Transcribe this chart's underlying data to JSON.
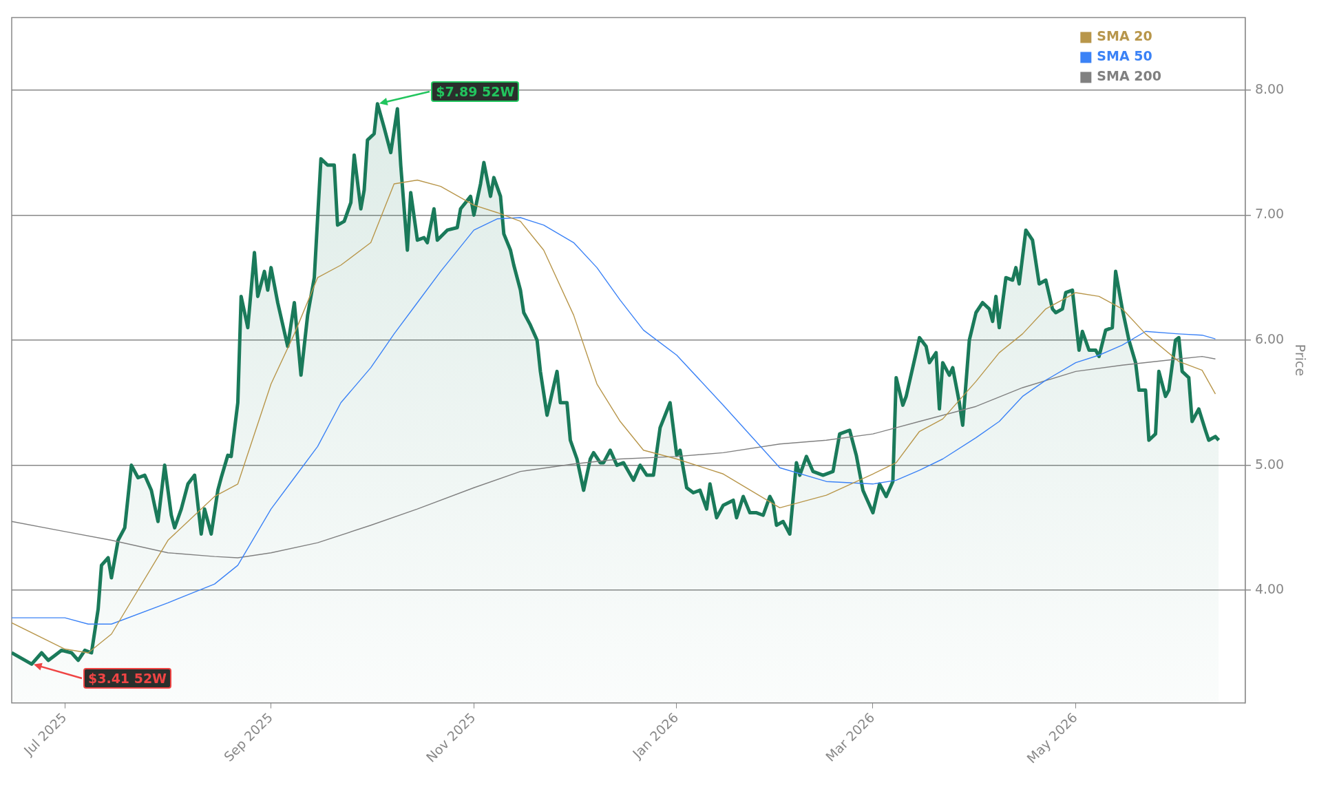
{
  "chart_data": {
    "type": "line",
    "ylabel": "Price",
    "ylim": [
      3.1,
      8.58
    ],
    "yticks": [
      {
        "value": 4,
        "label": "4.00"
      },
      {
        "value": 5,
        "label": "5.00"
      },
      {
        "value": 6,
        "label": "6.00"
      },
      {
        "value": 7,
        "label": "7.00"
      },
      {
        "value": 8,
        "label": "8.00"
      }
    ],
    "xlim": [
      "2025-06-15",
      "2026-06-21"
    ],
    "xticks": [
      {
        "value": "2025-07-01",
        "label": "Jul 2025"
      },
      {
        "value": "2025-09-01",
        "label": "Sep 2025"
      },
      {
        "value": "2025-11-01",
        "label": "Nov 2025"
      },
      {
        "value": "2026-01-01",
        "label": "Jan 2026"
      },
      {
        "value": "2026-03-01",
        "label": "Mar 2026"
      },
      {
        "value": "2026-05-01",
        "label": "May 2026"
      }
    ],
    "grid": "y",
    "legend": "top right",
    "marker": "none",
    "line_style": "solid",
    "annotations": [
      "$7.89 52W",
      "$3.41 52W"
    ],
    "series": [
      {
        "type": "area",
        "color": "#1a7a5a",
        "x": [
          "2025-06-15",
          "2025-06-19",
          "2025-06-21",
          "2025-06-24",
          "2025-06-26",
          "2025-06-28",
          "2025-06-30",
          "2025-07-03",
          "2025-07-05",
          "2025-07-07",
          "2025-07-09",
          "2025-07-11",
          "2025-07-12",
          "2025-07-14",
          "2025-07-15",
          "2025-07-17",
          "2025-07-19",
          "2025-07-21",
          "2025-07-23",
          "2025-07-25",
          "2025-07-27",
          "2025-07-29",
          "2025-07-31",
          "2025-08-02",
          "2025-08-03",
          "2025-08-05",
          "2025-08-07",
          "2025-08-09",
          "2025-08-11",
          "2025-08-12",
          "2025-08-14",
          "2025-08-16",
          "2025-08-17",
          "2025-08-19",
          "2025-08-20",
          "2025-08-22",
          "2025-08-23",
          "2025-08-25",
          "2025-08-27",
          "2025-08-28",
          "2025-08-30",
          "2025-08-31",
          "2025-09-01",
          "2025-09-03",
          "2025-09-06",
          "2025-09-08",
          "2025-09-10",
          "2025-09-12",
          "2025-09-14",
          "2025-09-16",
          "2025-09-18",
          "2025-09-20",
          "2025-09-21",
          "2025-09-23",
          "2025-09-25",
          "2025-09-26",
          "2025-09-28",
          "2025-09-29",
          "2025-09-30",
          "2025-10-02",
          "2025-10-03",
          "2025-10-05",
          "2025-10-07",
          "2025-10-09",
          "2025-10-10",
          "2025-10-12",
          "2025-10-13",
          "2025-10-15",
          "2025-10-17",
          "2025-10-18",
          "2025-10-20",
          "2025-10-21",
          "2025-10-24",
          "2025-10-27",
          "2025-10-28",
          "2025-10-31",
          "2025-11-01",
          "2025-11-03",
          "2025-11-04",
          "2025-11-06",
          "2025-11-07",
          "2025-11-09",
          "2025-11-10",
          "2025-11-12",
          "2025-11-13",
          "2025-11-15",
          "2025-11-16",
          "2025-11-18",
          "2025-11-20",
          "2025-11-21",
          "2025-11-23",
          "2025-11-26",
          "2025-11-27",
          "2025-11-29",
          "2025-11-30",
          "2025-12-02",
          "2025-12-04",
          "2025-12-06",
          "2025-12-07",
          "2025-12-09",
          "2025-12-10",
          "2025-12-12",
          "2025-12-14",
          "2025-12-16",
          "2025-12-19",
          "2025-12-21",
          "2025-12-23",
          "2025-12-25",
          "2025-12-27",
          "2025-12-30",
          "2026-01-01",
          "2026-01-02",
          "2026-01-04",
          "2026-01-06",
          "2026-01-08",
          "2026-01-10",
          "2026-01-11",
          "2026-01-13",
          "2026-01-15",
          "2026-01-18",
          "2026-01-19",
          "2026-01-21",
          "2026-01-23",
          "2026-01-25",
          "2026-01-27",
          "2026-01-29",
          "2026-01-30",
          "2026-01-31",
          "2026-02-02",
          "2026-02-04",
          "2026-02-06",
          "2026-02-07",
          "2026-02-09",
          "2026-02-11",
          "2026-02-14",
          "2026-02-17",
          "2026-02-19",
          "2026-02-22",
          "2026-02-24",
          "2026-02-26",
          "2026-03-01",
          "2026-03-03",
          "2026-03-05",
          "2026-03-07",
          "2026-03-08",
          "2026-03-10",
          "2026-03-11",
          "2026-03-14",
          "2026-03-15",
          "2026-03-17",
          "2026-03-18",
          "2026-03-20",
          "2026-03-21",
          "2026-03-22",
          "2026-03-24",
          "2026-03-25",
          "2026-03-27",
          "2026-03-28",
          "2026-03-30",
          "2026-04-01",
          "2026-04-03",
          "2026-04-05",
          "2026-04-06",
          "2026-04-07",
          "2026-04-08",
          "2026-04-10",
          "2026-04-12",
          "2026-04-13",
          "2026-04-14",
          "2026-04-16",
          "2026-04-18",
          "2026-04-20",
          "2026-04-22",
          "2026-04-24",
          "2026-04-25",
          "2026-04-27",
          "2026-04-28",
          "2026-04-30",
          "2026-05-02",
          "2026-05-03",
          "2026-05-05",
          "2026-05-07",
          "2026-05-08",
          "2026-05-10",
          "2026-05-12",
          "2026-05-13",
          "2026-05-15",
          "2026-05-17",
          "2026-05-19",
          "2026-05-20",
          "2026-05-22",
          "2026-05-23",
          "2026-05-25",
          "2026-05-26",
          "2026-05-28",
          "2026-05-29",
          "2026-05-31",
          "2026-06-01",
          "2026-06-02",
          "2026-06-04",
          "2026-06-05",
          "2026-06-07",
          "2026-06-09",
          "2026-06-10",
          "2026-06-12",
          "2026-06-13"
        ],
        "values": [
          3.5,
          3.44,
          3.41,
          3.5,
          3.44,
          3.48,
          3.52,
          3.5,
          3.44,
          3.52,
          3.5,
          3.85,
          4.2,
          4.26,
          4.1,
          4.4,
          4.5,
          5.0,
          4.9,
          4.92,
          4.8,
          4.55,
          5.0,
          4.6,
          4.5,
          4.65,
          4.85,
          4.92,
          4.45,
          4.65,
          4.45,
          4.8,
          4.9,
          5.08,
          5.07,
          5.5,
          6.35,
          6.1,
          6.7,
          6.35,
          6.55,
          6.4,
          6.58,
          6.3,
          5.95,
          6.3,
          5.72,
          6.2,
          6.5,
          7.45,
          7.4,
          7.4,
          6.92,
          6.95,
          7.1,
          7.48,
          7.05,
          7.2,
          7.6,
          7.65,
          7.89,
          7.7,
          7.5,
          7.85,
          7.4,
          6.72,
          7.18,
          6.8,
          6.82,
          6.78,
          7.05,
          6.8,
          6.88,
          6.9,
          7.05,
          7.15,
          7.0,
          7.25,
          7.42,
          7.15,
          7.3,
          7.15,
          6.85,
          6.72,
          6.6,
          6.4,
          6.22,
          6.12,
          6.0,
          5.75,
          5.4,
          5.75,
          5.5,
          5.5,
          5.2,
          5.05,
          4.8,
          5.05,
          5.1,
          5.02,
          5.02,
          5.12,
          5.0,
          5.02,
          4.88,
          5.0,
          4.92,
          4.92,
          5.3,
          5.5,
          5.08,
          5.12,
          4.82,
          4.78,
          4.8,
          4.65,
          4.85,
          4.58,
          4.68,
          4.72,
          4.58,
          4.75,
          4.62,
          4.62,
          4.6,
          4.75,
          4.7,
          4.52,
          4.55,
          4.45,
          5.02,
          4.92,
          5.07,
          4.95,
          4.92,
          4.95,
          5.25,
          5.28,
          5.08,
          4.8,
          4.62,
          4.85,
          4.75,
          4.87,
          5.7,
          5.48,
          5.55,
          5.9,
          6.02,
          5.95,
          5.82,
          5.9,
          5.45,
          5.82,
          5.72,
          5.78,
          5.5,
          5.32,
          6.0,
          6.22,
          6.3,
          6.25,
          6.15,
          6.35,
          6.1,
          6.5,
          6.48,
          6.58,
          6.45,
          6.88,
          6.8,
          6.45,
          6.48,
          6.25,
          6.22,
          6.25,
          6.38,
          6.4,
          5.92,
          6.07,
          5.92,
          5.92,
          5.87,
          6.08,
          6.1,
          6.55,
          6.25,
          6.0,
          5.82,
          5.6,
          5.6,
          5.2,
          5.25,
          5.75,
          5.55,
          5.6,
          6.0,
          6.02,
          5.75,
          5.7,
          5.35,
          5.45,
          5.28,
          5.2,
          5.23,
          5.2
        ]
      },
      {
        "type": "line",
        "name": "SMA 20",
        "color": "#b8964a",
        "x": [
          "2025-06-15",
          "2025-07-01",
          "2025-07-08",
          "2025-07-15",
          "2025-08-01",
          "2025-08-15",
          "2025-08-22",
          "2025-09-01",
          "2025-09-08",
          "2025-09-15",
          "2025-09-22",
          "2025-10-01",
          "2025-10-08",
          "2025-10-15",
          "2025-10-22",
          "2025-11-01",
          "2025-11-08",
          "2025-11-15",
          "2025-11-22",
          "2025-12-01",
          "2025-12-08",
          "2025-12-15",
          "2025-12-22",
          "2026-01-01",
          "2026-01-15",
          "2026-02-01",
          "2026-02-15",
          "2026-03-01",
          "2026-03-08",
          "2026-03-15",
          "2026-03-22",
          "2026-04-01",
          "2026-04-08",
          "2026-04-15",
          "2026-04-22",
          "2026-05-01",
          "2026-05-08",
          "2026-05-15",
          "2026-05-22",
          "2026-06-01",
          "2026-06-08",
          "2026-06-12"
        ],
        "values": [
          3.74,
          3.53,
          3.5,
          3.65,
          4.4,
          4.75,
          4.85,
          5.65,
          6.05,
          6.5,
          6.6,
          6.78,
          7.25,
          7.28,
          7.23,
          7.08,
          7.02,
          6.95,
          6.72,
          6.2,
          5.65,
          5.35,
          5.12,
          5.05,
          4.93,
          4.66,
          4.76,
          4.93,
          5.02,
          5.27,
          5.37,
          5.67,
          5.9,
          6.05,
          6.25,
          6.38,
          6.35,
          6.25,
          6.05,
          5.83,
          5.76,
          5.57
        ]
      },
      {
        "type": "line",
        "name": "SMA 50",
        "color": "#3b82f6",
        "x": [
          "2025-06-15",
          "2025-07-01",
          "2025-07-08",
          "2025-07-15",
          "2025-08-01",
          "2025-08-15",
          "2025-08-22",
          "2025-09-01",
          "2025-09-08",
          "2025-09-15",
          "2025-09-22",
          "2025-10-01",
          "2025-10-08",
          "2025-10-15",
          "2025-10-22",
          "2025-11-01",
          "2025-11-08",
          "2025-11-15",
          "2025-11-22",
          "2025-12-01",
          "2025-12-08",
          "2025-12-15",
          "2025-12-22",
          "2026-01-01",
          "2026-01-15",
          "2026-02-01",
          "2026-02-15",
          "2026-03-01",
          "2026-03-08",
          "2026-03-15",
          "2026-03-22",
          "2026-04-01",
          "2026-04-08",
          "2026-04-15",
          "2026-04-22",
          "2026-05-01",
          "2026-05-08",
          "2026-05-15",
          "2026-05-22",
          "2026-06-01",
          "2026-06-08",
          "2026-06-12"
        ],
        "values": [
          3.78,
          3.78,
          3.73,
          3.73,
          3.9,
          4.05,
          4.2,
          4.65,
          4.9,
          5.15,
          5.5,
          5.78,
          6.05,
          6.3,
          6.55,
          6.88,
          6.97,
          6.98,
          6.92,
          6.78,
          6.58,
          6.32,
          6.08,
          5.88,
          5.48,
          4.98,
          4.87,
          4.85,
          4.88,
          4.96,
          5.05,
          5.22,
          5.35,
          5.55,
          5.68,
          5.82,
          5.88,
          5.96,
          6.07,
          6.05,
          6.04,
          6.01
        ]
      },
      {
        "type": "line",
        "name": "SMA 200",
        "color": "#808080",
        "x": [
          "2025-06-15",
          "2025-07-01",
          "2025-07-15",
          "2025-08-01",
          "2025-08-15",
          "2025-08-22",
          "2025-09-01",
          "2025-09-15",
          "2025-10-01",
          "2025-10-15",
          "2025-11-01",
          "2025-11-15",
          "2025-12-01",
          "2025-12-15",
          "2026-01-01",
          "2026-01-15",
          "2026-02-01",
          "2026-02-15",
          "2026-03-01",
          "2026-03-15",
          "2026-04-01",
          "2026-04-15",
          "2026-05-01",
          "2026-05-15",
          "2026-06-01",
          "2026-06-08",
          "2026-06-12"
        ],
        "values": [
          4.55,
          4.47,
          4.4,
          4.3,
          4.27,
          4.26,
          4.3,
          4.38,
          4.52,
          4.65,
          4.82,
          4.95,
          5.01,
          5.05,
          5.07,
          5.1,
          5.17,
          5.2,
          5.25,
          5.35,
          5.47,
          5.62,
          5.75,
          5.8,
          5.85,
          5.87,
          5.85
        ]
      }
    ]
  }
}
